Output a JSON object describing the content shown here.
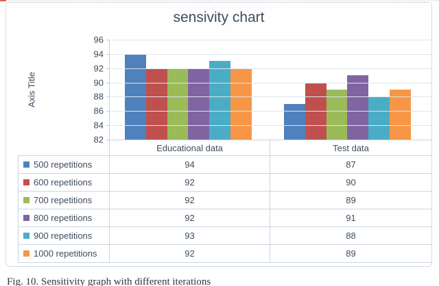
{
  "figure": {
    "caption": "Fig. 10. Sensitivity graph with different iterations"
  },
  "chart_data": {
    "type": "bar",
    "title": "sensivity chart",
    "xlabel": "",
    "ylabel": "Axis Title",
    "categories": [
      "Educational data",
      "Test data"
    ],
    "series": [
      {
        "name": "500 repetitions",
        "color": "#4F81BD",
        "values": [
          94,
          87
        ]
      },
      {
        "name": "600 repetitions",
        "color": "#C0504D",
        "values": [
          92,
          90
        ]
      },
      {
        "name": "700 repetitions",
        "color": "#9BBB59",
        "values": [
          92,
          89
        ]
      },
      {
        "name": "800 repetitions",
        "color": "#8064A2",
        "values": [
          92,
          91
        ]
      },
      {
        "name": "900 repetitions",
        "color": "#4BACC6",
        "values": [
          93,
          88
        ]
      },
      {
        "name": "1000 repetitions",
        "color": "#F79646",
        "values": [
          92,
          89
        ]
      }
    ],
    "ylim": [
      82,
      96
    ],
    "yticks": [
      96,
      94,
      92,
      90,
      88,
      86,
      84,
      82
    ],
    "ytick_step": 2,
    "grid": true,
    "legend_position": "data-table-left",
    "ui_colors": {
      "title_text": "#3d4d5c",
      "axis_text": "#3e4c5e",
      "gridline": "#dde6ee",
      "table_border": "#c9d4e0"
    }
  }
}
